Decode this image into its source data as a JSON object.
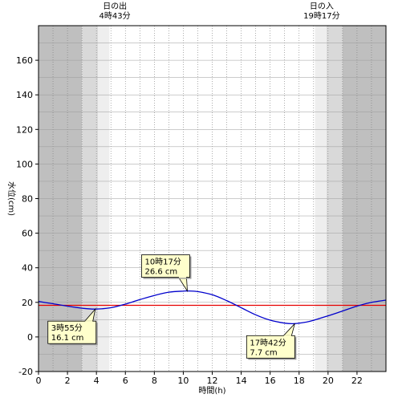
{
  "chart_data": {
    "type": "line",
    "xlabel": "時間(h)",
    "ylabel": "水位(cm)",
    "xlim": [
      0,
      24
    ],
    "ylim": [
      -20,
      180
    ],
    "xticks": [
      0,
      2,
      4,
      6,
      8,
      10,
      12,
      14,
      16,
      18,
      20,
      22
    ],
    "yticks": [
      -20,
      0,
      20,
      40,
      60,
      80,
      100,
      120,
      140,
      160
    ],
    "grid": true,
    "sunrise": {
      "title": "日の出",
      "time": "4時43分",
      "hour": 4.717
    },
    "sunset": {
      "title": "日の入",
      "time": "19時17分",
      "hour": 19.283
    },
    "twilight_hours": {
      "night_end": 3.0,
      "civil_end": 4.1,
      "light_end": 4.9,
      "light_start": 19.1,
      "civil_start": 19.9,
      "night_start": 21.0
    },
    "reference_line": {
      "value": 18.3,
      "color": "#e60000"
    },
    "series": [
      {
        "color": "#0000cc",
        "x": [
          0,
          1,
          2,
          3,
          3.92,
          5,
          6,
          7,
          8,
          9,
          10,
          10.28,
          11,
          12,
          13,
          14,
          15,
          16,
          17,
          17.7,
          18.5,
          19,
          20,
          21,
          22,
          23,
          24
        ],
        "y": [
          20.5,
          19.2,
          17.8,
          16.6,
          16.1,
          16.9,
          19.0,
          21.6,
          24.0,
          25.9,
          26.5,
          26.6,
          26.2,
          24.4,
          21.0,
          16.9,
          12.8,
          9.7,
          8.0,
          7.7,
          8.6,
          9.6,
          12.2,
          15.0,
          17.8,
          20.0,
          21.3
        ]
      }
    ],
    "annotations": [
      {
        "time": "10時17分",
        "value": "26.6 cm",
        "x": 10.28,
        "y": 26.6
      },
      {
        "time": "3時55分",
        "value": "16.1 cm",
        "x": 3.92,
        "y": 16.1
      },
      {
        "time": "17時42分",
        "value": "7.7 cm",
        "x": 17.7,
        "y": 7.7
      }
    ],
    "colors": {
      "night": "#bfbfbf",
      "civil": "#d9d9d9",
      "light": "#eeeeee",
      "day": "#ffffff",
      "grid": "#777777",
      "callout_bg": "#ffffcc"
    }
  }
}
